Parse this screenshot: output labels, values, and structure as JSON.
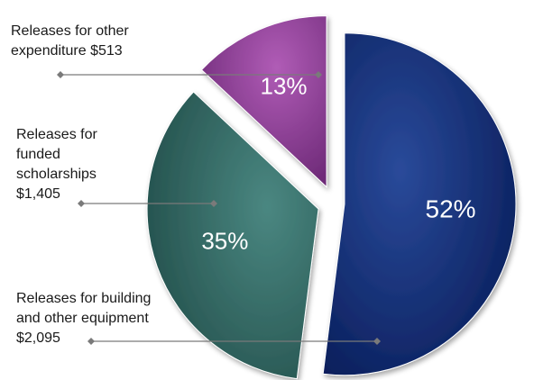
{
  "chart_data": {
    "type": "pie",
    "exploded": true,
    "slices": [
      {
        "label": "Releases for building\nand other equipment\n$2,095",
        "amount": 2095,
        "percent_label": "52%",
        "value": 52,
        "color": "#0e2a6e"
      },
      {
        "label": "Releases for\nfunded\nscholarships\n$1,405",
        "amount": 1405,
        "percent_label": "35%",
        "value": 35,
        "color": "#2f6965"
      },
      {
        "label": "Releases for other\nexpenditure $513",
        "amount": 513,
        "percent_label": "13%",
        "value": 13,
        "color": "#8e3d96"
      }
    ]
  }
}
